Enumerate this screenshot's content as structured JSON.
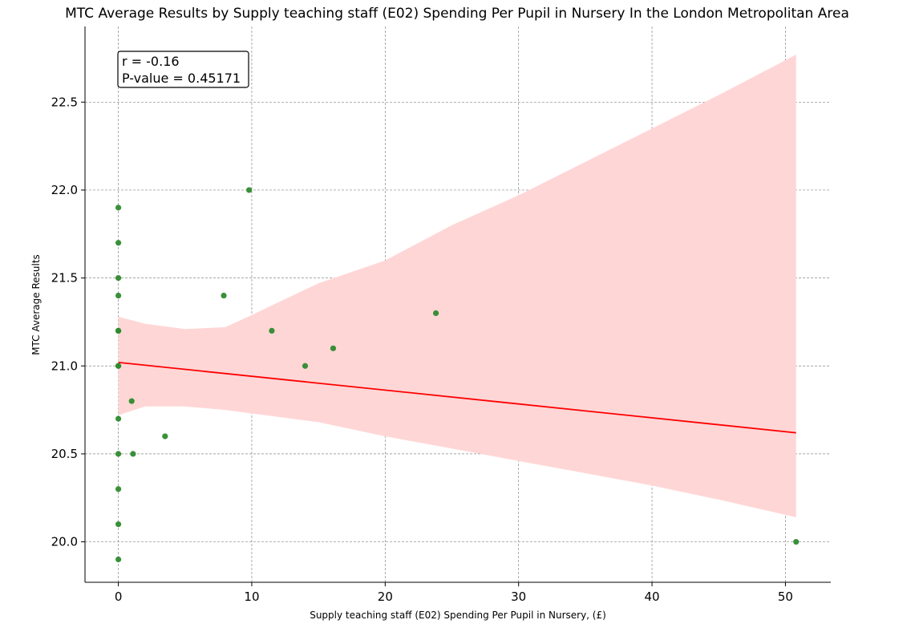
{
  "chart_data": {
    "type": "scatter",
    "title": "MTC Average Results by Supply teaching staff (E02) Spending Per Pupil in Nursery In the London Metropolitan Area",
    "xlabel": "Supply teaching staff (E02) Spending Per Pupil in Nursery, (£)",
    "ylabel": "MTC Average Results",
    "xlim": [
      -2.5,
      53.4
    ],
    "ylim": [
      19.77,
      22.93
    ],
    "xticks": [
      0,
      10,
      20,
      30,
      40,
      50
    ],
    "yticks": [
      20.0,
      20.5,
      21.0,
      21.5,
      22.0,
      22.5
    ],
    "xtick_labels": [
      "0",
      "10",
      "20",
      "30",
      "40",
      "50"
    ],
    "ytick_labels": [
      "20.0",
      "20.5",
      "21.0",
      "21.5",
      "22.0",
      "22.5"
    ],
    "grid": true,
    "point_color": "#2e8b2e",
    "line_color": "#ff0000",
    "band_color": "#ffd6d6",
    "points": [
      {
        "x": 0,
        "y": 21.9
      },
      {
        "x": 0,
        "y": 21.7
      },
      {
        "x": 0,
        "y": 21.5
      },
      {
        "x": 0,
        "y": 21.4
      },
      {
        "x": 0,
        "y": 21.2
      },
      {
        "x": 0,
        "y": 21.2
      },
      {
        "x": 0,
        "y": 21.0
      },
      {
        "x": 0,
        "y": 21.0
      },
      {
        "x": 0,
        "y": 20.7
      },
      {
        "x": 0,
        "y": 20.5
      },
      {
        "x": 0,
        "y": 20.3
      },
      {
        "x": 0,
        "y": 20.1
      },
      {
        "x": 0,
        "y": 19.9
      },
      {
        "x": 1.0,
        "y": 20.8
      },
      {
        "x": 1.1,
        "y": 20.5
      },
      {
        "x": 3.5,
        "y": 20.6
      },
      {
        "x": 7.9,
        "y": 21.4
      },
      {
        "x": 9.8,
        "y": 22.0
      },
      {
        "x": 11.5,
        "y": 21.2
      },
      {
        "x": 14.0,
        "y": 21.0
      },
      {
        "x": 16.1,
        "y": 21.1
      },
      {
        "x": 23.8,
        "y": 21.3
      },
      {
        "x": 50.8,
        "y": 20.0
      }
    ],
    "regression": {
      "x": [
        0,
        50.8
      ],
      "y": [
        21.02,
        20.62
      ]
    },
    "confidence_band": {
      "x": [
        0,
        2,
        5,
        8,
        10,
        15,
        20,
        25,
        30,
        35,
        40,
        45,
        50.8
      ],
      "upper": [
        21.28,
        21.24,
        21.21,
        21.22,
        21.29,
        21.47,
        21.6,
        21.8,
        21.97,
        22.16,
        22.35,
        22.54,
        22.77
      ],
      "lower": [
        20.72,
        20.77,
        20.77,
        20.75,
        20.73,
        20.68,
        20.6,
        20.53,
        20.46,
        20.39,
        20.32,
        20.24,
        20.14
      ]
    },
    "annotation": {
      "line1": "r = -0.16",
      "line2": "P-value = 0.45171"
    }
  }
}
